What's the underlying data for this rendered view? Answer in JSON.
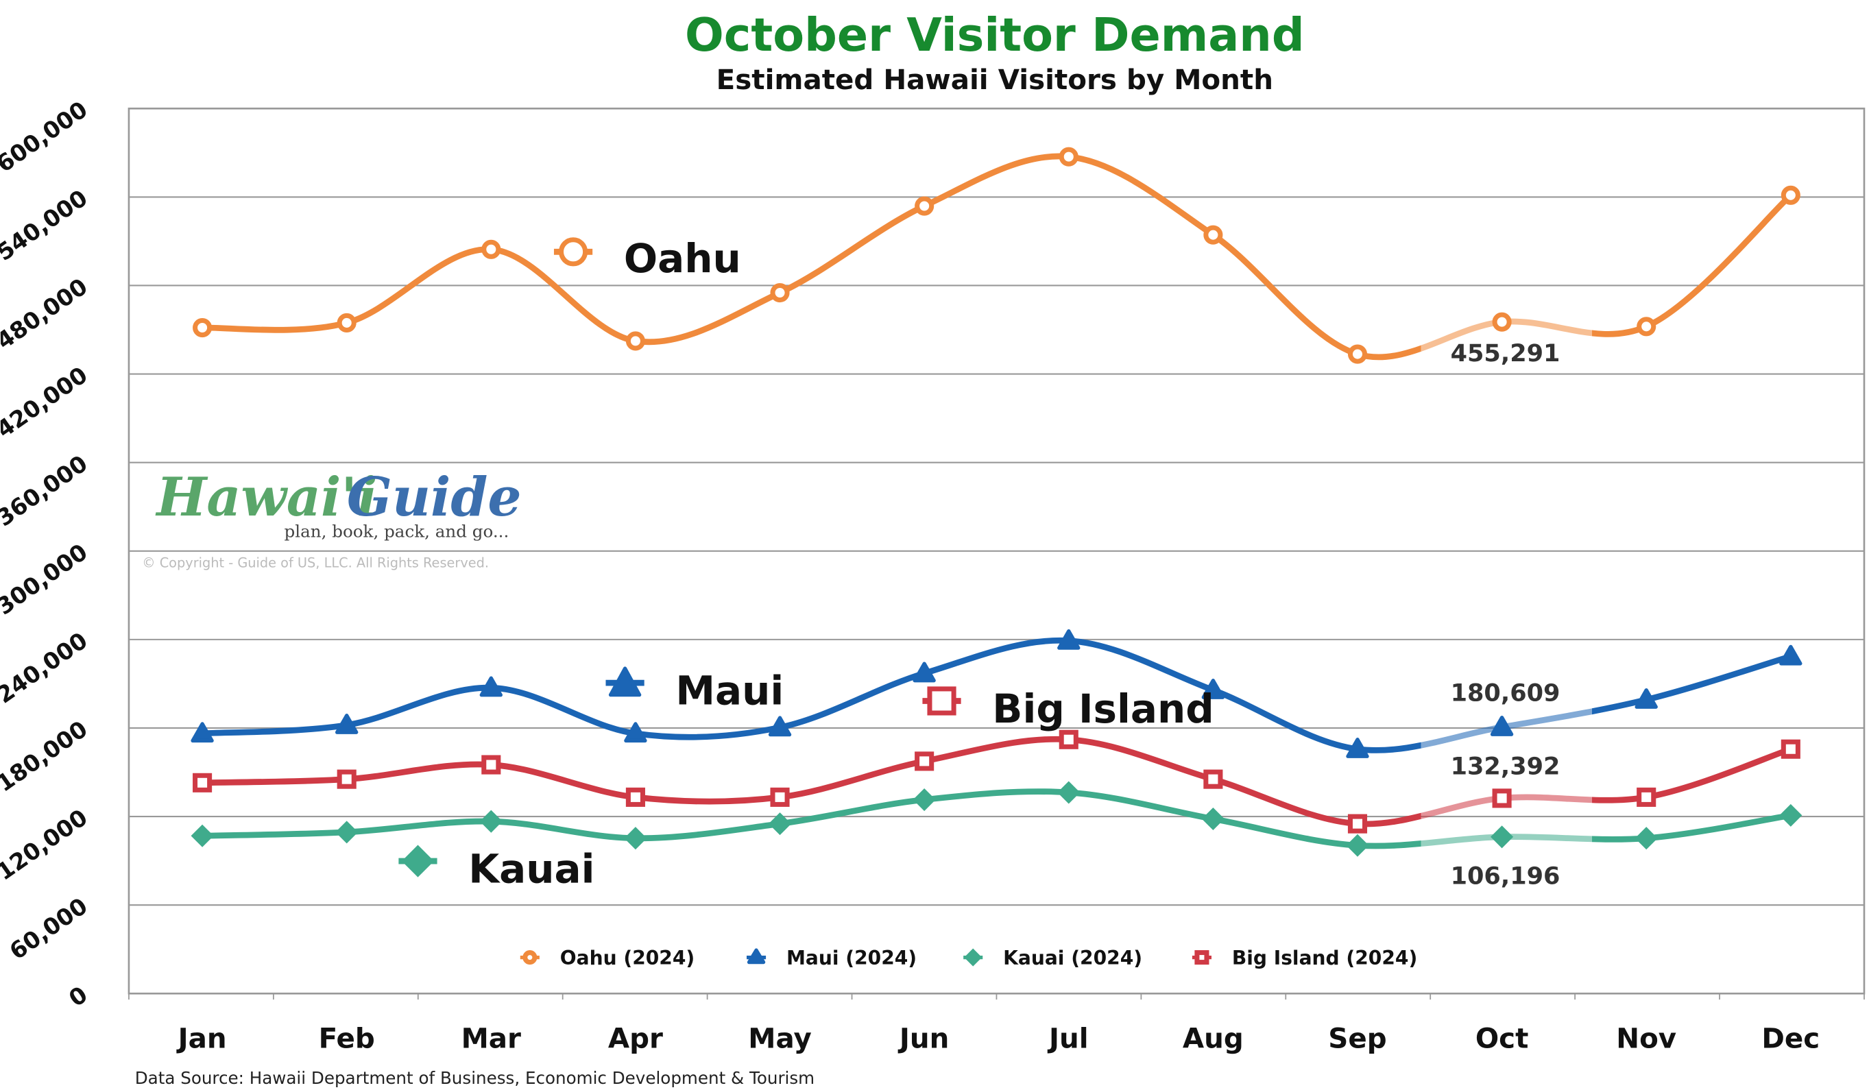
{
  "chart_data": {
    "type": "line",
    "title": "October Visitor Demand",
    "subtitle": "Estimated Hawaii Visitors by Month",
    "categories": [
      "Jan",
      "Feb",
      "Mar",
      "Apr",
      "May",
      "Jun",
      "Jul",
      "Aug",
      "Sep",
      "Oct",
      "Nov",
      "Dec"
    ],
    "ylim": [
      0,
      600000
    ],
    "yticks": [
      "0",
      "60,000",
      "120,000",
      "180,000",
      "240,000",
      "300,000",
      "360,000",
      "420,000",
      "480,000",
      "540,000",
      "600,000"
    ],
    "ytick_values": [
      0,
      60000,
      120000,
      180000,
      240000,
      300000,
      360000,
      420000,
      480000,
      540000,
      600000
    ],
    "grid": true,
    "legend_placement": "bottom",
    "highlight_category": "Oct",
    "series": [
      {
        "name": "Oahu (2024)",
        "label": "Oahu",
        "color": "#f08a3c",
        "marker": "circle",
        "values": [
          451400,
          454700,
          504500,
          442400,
          475100,
          533900,
          567300,
          514300,
          433500,
          455291,
          452200,
          541200
        ],
        "highlight_label": "455,291"
      },
      {
        "name": "Maui (2024)",
        "label": "Maui",
        "color": "#1b65b5",
        "marker": "triangle",
        "values": [
          176300,
          182000,
          207300,
          176300,
          180400,
          217100,
          239200,
          205700,
          165700,
          180609,
          199200,
          228600
        ],
        "highlight_label": "180,609"
      },
      {
        "name": "Kauai (2024)",
        "label": "Kauai",
        "color": "#3fab8c",
        "marker": "diamond",
        "values": [
          106900,
          109400,
          116700,
          105300,
          115100,
          131400,
          136300,
          118400,
          100400,
          106196,
          105300,
          120800
        ],
        "highlight_label": "106,196"
      },
      {
        "name": "Big Island (2024)",
        "label": "Big Island",
        "color": "#cf3a45",
        "marker": "square",
        "values": [
          142900,
          145300,
          155100,
          133100,
          133100,
          157500,
          172200,
          145300,
          115100,
          132392,
          133100,
          165700
        ],
        "highlight_label": "132,392"
      }
    ]
  },
  "logo": {
    "text_left": "Hawai'i",
    "text_right": "Guide",
    "tagline": "plan, book, pack, and go...",
    "copyright": "© Copyright - Guide of US, LLC. All Rights Reserved."
  },
  "source": "Data Source: Hawaii Department of Business, Economic Development & Tourism"
}
